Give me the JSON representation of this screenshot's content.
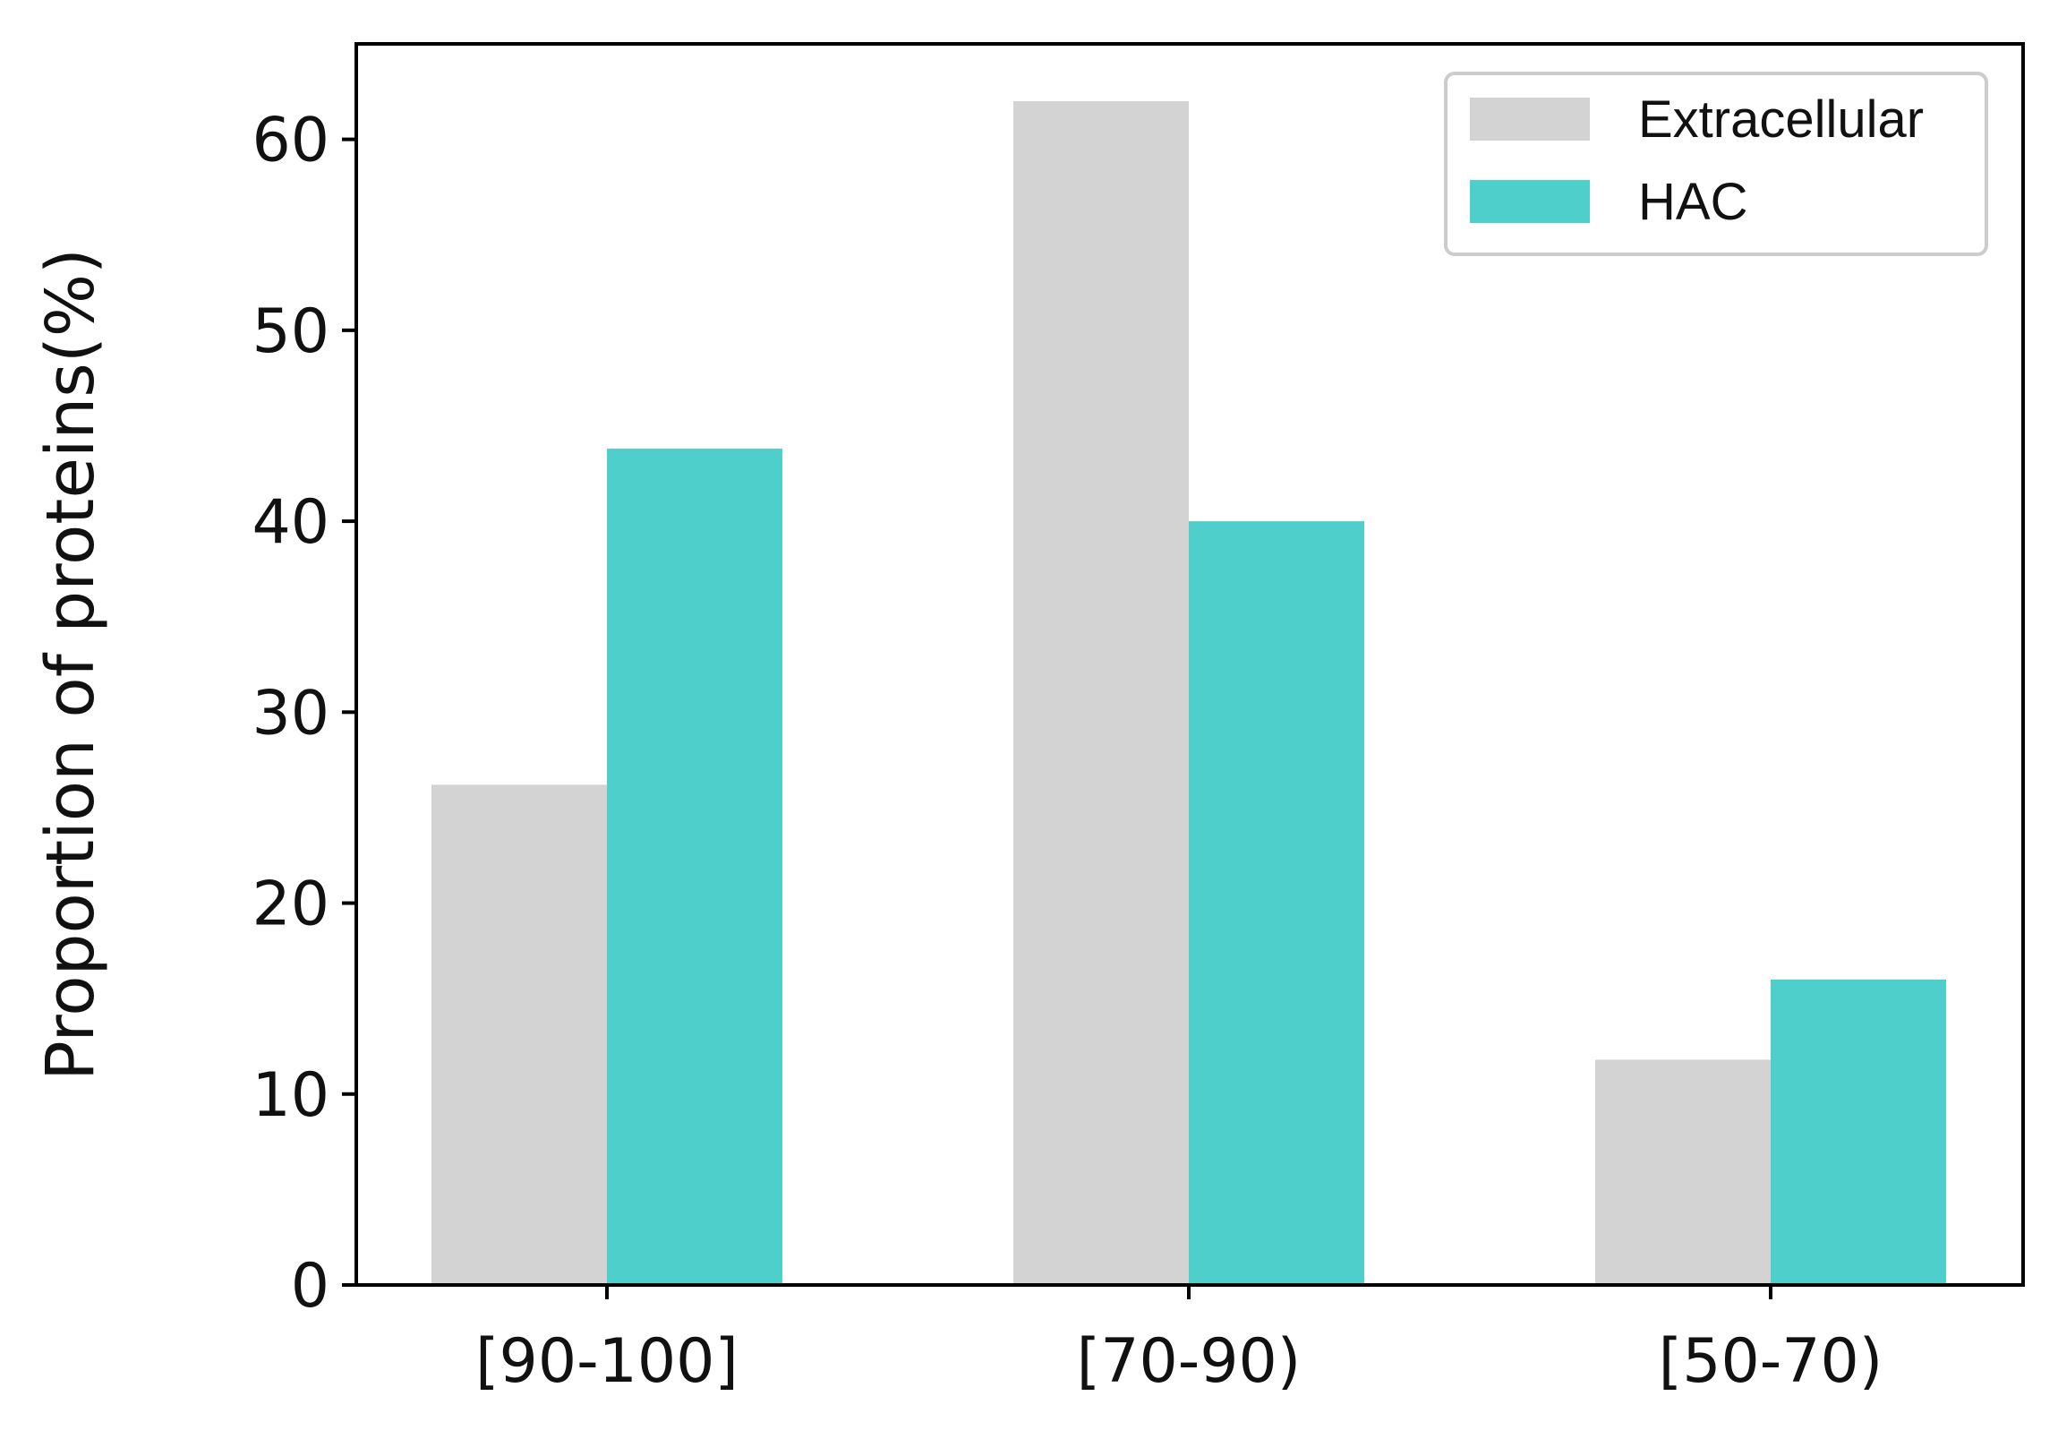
{
  "chart_data": {
    "type": "bar",
    "title": "",
    "xlabel": "",
    "ylabel": "Proportion of proteins(%)",
    "categories": [
      "[90-100]",
      "[70-90)",
      "[50-70)"
    ],
    "series": [
      {
        "name": "Extracellular",
        "color": "#d3d3d3",
        "values": [
          26.2,
          62.0,
          11.8
        ]
      },
      {
        "name": "HAC",
        "color": "#4ecfcb",
        "values": [
          43.8,
          40.0,
          16.0
        ]
      }
    ],
    "ylim": [
      0,
      65
    ],
    "yticks": [
      0,
      10,
      20,
      30,
      40,
      50,
      60
    ],
    "grid": false,
    "legend_position": "top-right"
  }
}
